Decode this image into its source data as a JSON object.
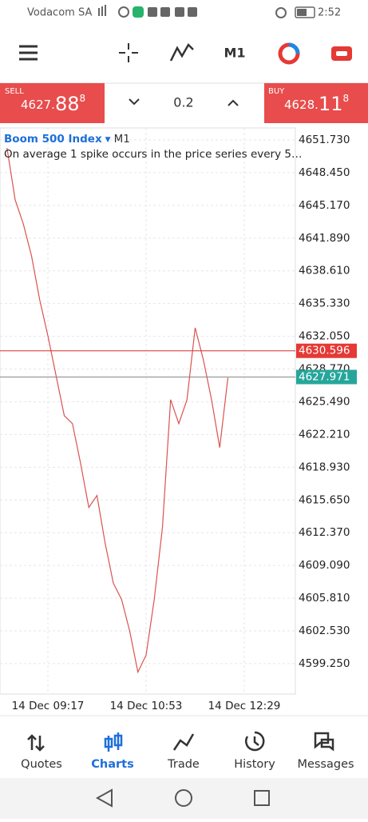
{
  "status_bar": {
    "carrier": "Vodacom SA",
    "time": "2:52"
  },
  "toolbar": {
    "timeframe": "M1"
  },
  "trade_panel": {
    "sell": {
      "label": "SELL",
      "price_main": "4627.",
      "price_big": "88",
      "price_sup": "8"
    },
    "volume": "0.2",
    "buy": {
      "label": "BUY",
      "price_main": "4628.",
      "price_big": "11",
      "price_sup": "8"
    }
  },
  "chart_header": {
    "symbol": "Boom 500 Index",
    "timeframe": "M1",
    "description": "On average 1 spike occurs in the price series every 5…"
  },
  "chart_data": {
    "type": "line",
    "categories": [
      null,
      null,
      null,
      null,
      null,
      "14 Dec 09:17",
      null,
      null,
      null,
      null,
      null,
      null,
      null,
      null,
      null,
      null,
      null,
      "14 Dec 10:53",
      null,
      null,
      null,
      null,
      null,
      null,
      null,
      null,
      null,
      null,
      null,
      "14 Dec 12:29",
      null,
      null,
      null,
      null,
      null
    ],
    "series": [
      {
        "color": "#d9534f",
        "values": [
          4650.93,
          4645.72,
          4643.3,
          4640.1,
          4635.7,
          4632.1,
          4628.1,
          4624.1,
          4623.3,
          4619.3,
          4614.9,
          4616.1,
          4611.3,
          4607.3,
          4605.7,
          4602.5,
          4598.4,
          4600.1,
          4605.7,
          4612.9,
          4625.7,
          4623.3,
          4625.7,
          4632.9,
          4629.7,
          4625.7,
          4620.9,
          4627.9,
          null,
          null,
          null,
          null,
          null,
          null,
          null
        ]
      }
    ],
    "ylim": [
      4596.2,
      4652.93
    ],
    "yticks": [
      {
        "value": 4651.73,
        "label": "4651.730"
      },
      {
        "value": 4648.45,
        "label": "4648.450"
      },
      {
        "value": 4645.17,
        "label": "4645.170"
      },
      {
        "value": 4641.89,
        "label": "4641.890"
      },
      {
        "value": 4638.61,
        "label": "4638.610"
      },
      {
        "value": 4635.33,
        "label": "4635.330"
      },
      {
        "value": 4632.05,
        "label": "4632.050"
      },
      {
        "value": 4628.77,
        "label": "4628.770"
      },
      {
        "value": 4625.49,
        "label": "4625.490"
      },
      {
        "value": 4622.21,
        "label": "4622.210"
      },
      {
        "value": 4618.93,
        "label": "4618.930"
      },
      {
        "value": 4615.65,
        "label": "4615.650"
      },
      {
        "value": 4612.37,
        "label": "4612.370"
      },
      {
        "value": 4609.09,
        "label": "4609.090"
      },
      {
        "value": 4605.81,
        "label": "4605.810"
      },
      {
        "value": 4602.53,
        "label": "4602.530"
      },
      {
        "value": 4599.25,
        "label": "4599.250"
      }
    ],
    "grid": true,
    "price_lines": [
      {
        "value": 4630.596,
        "line_color": "#d32f2f",
        "color": "#e53935"
      },
      {
        "value": 4627.971,
        "line_color": "#888888",
        "color": "#26a69a"
      }
    ]
  },
  "nav": {
    "items": [
      "Quotes",
      "Charts",
      "Trade",
      "History",
      "Messages"
    ],
    "active": 1
  }
}
